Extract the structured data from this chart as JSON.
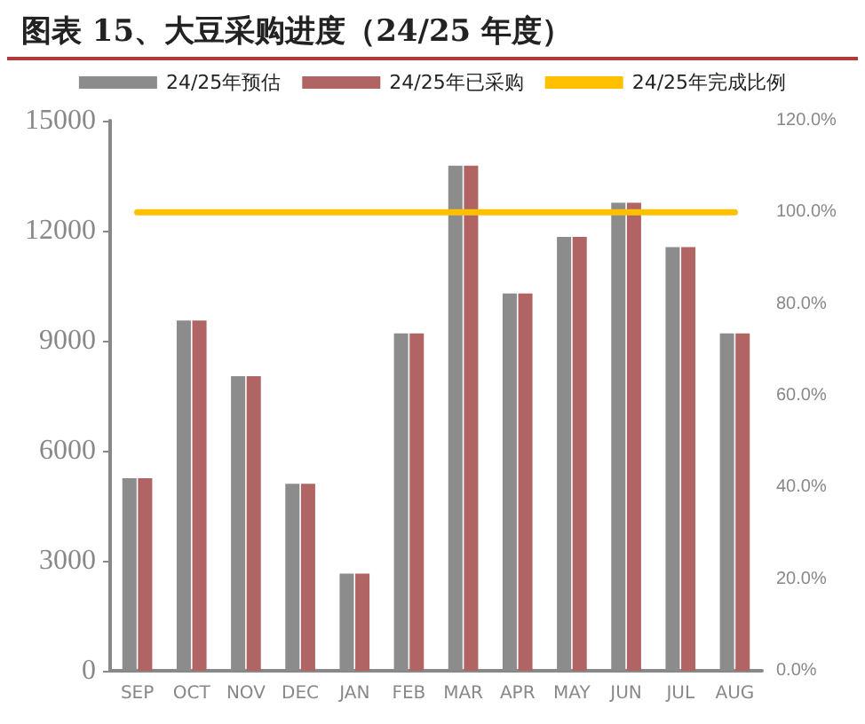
{
  "chart_data": {
    "type": "bar",
    "title": "图表 15、大豆采购进度（24/25 年度）",
    "categories": [
      "SEP",
      "OCT",
      "NOV",
      "DEC",
      "JAN",
      "FEB",
      "MAR",
      "APR",
      "MAY",
      "JUN",
      "JUL",
      "AUG"
    ],
    "series": [
      {
        "name": "24/25年预估",
        "color": "#8c8c8c",
        "values": [
          5250,
          9550,
          8030,
          5100,
          2650,
          9200,
          13770,
          10290,
          11830,
          12760,
          11550,
          9200
        ]
      },
      {
        "name": "24/25年已采购",
        "color": "#b06464",
        "values": [
          5250,
          9550,
          8030,
          5100,
          2650,
          9200,
          13770,
          10290,
          11830,
          12760,
          11550,
          9200
        ]
      },
      {
        "name": "24/25年完成比例",
        "color": "#ffc000",
        "type": "line",
        "axis": "y2",
        "values": [
          100,
          100,
          100,
          100,
          100,
          100,
          100,
          100,
          100,
          100,
          100,
          100
        ]
      }
    ],
    "ylim": [
      0,
      15000
    ],
    "yticks": [
      0,
      3000,
      6000,
      9000,
      12000,
      15000
    ],
    "y2lim": [
      0,
      120
    ],
    "y2ticks": [
      {
        "value": 0,
        "label": "0.0%"
      },
      {
        "value": 20,
        "label": "20.0%"
      },
      {
        "value": 40,
        "label": "40.0%"
      },
      {
        "value": 60,
        "label": "60.0%"
      },
      {
        "value": 80,
        "label": "80.0%"
      },
      {
        "value": 100,
        "label": "100.0%"
      },
      {
        "value": 120,
        "label": "120.0%"
      }
    ],
    "grid": false,
    "legend": "top",
    "marker": "none",
    "line_style": "solid"
  }
}
